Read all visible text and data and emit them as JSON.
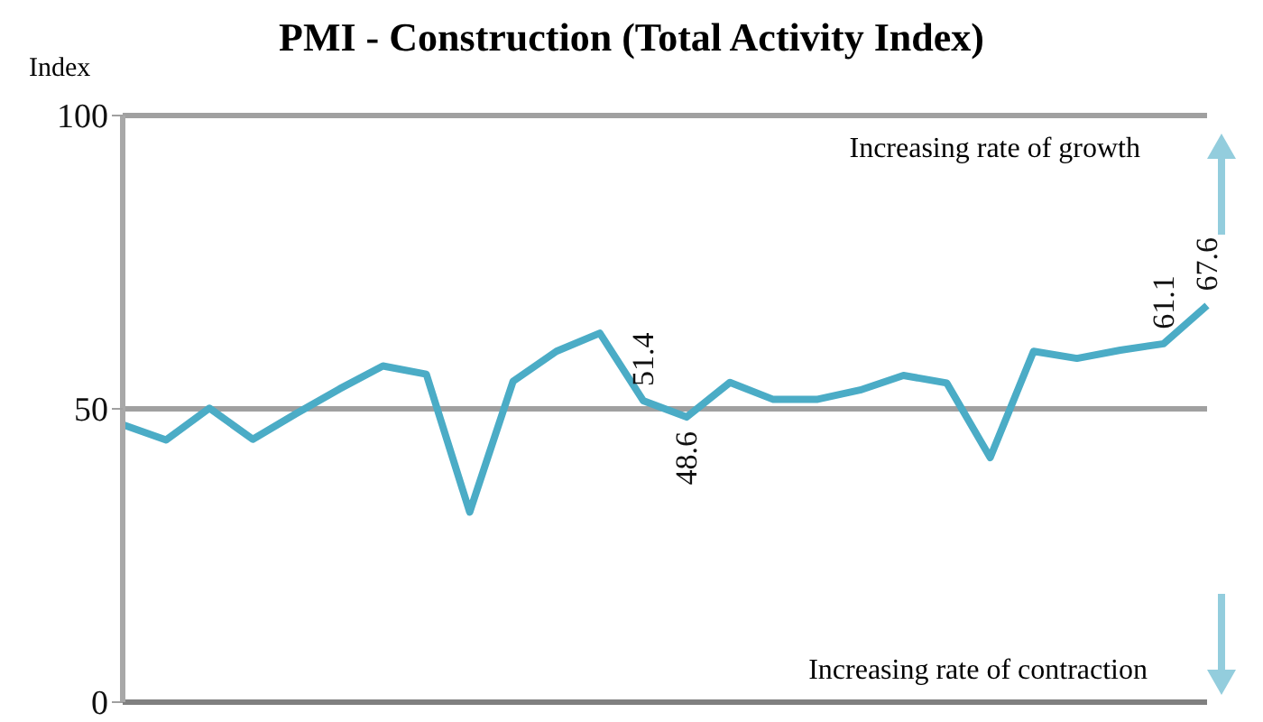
{
  "chart_data": {
    "type": "line",
    "title": "PMI - Construction (Total Activity Index)",
    "ylabel": "Index",
    "categories": [
      null,
      null,
      null,
      null,
      null,
      null,
      null,
      null,
      null,
      null,
      null,
      null,
      null,
      null,
      null,
      null,
      null,
      null,
      null,
      null,
      null,
      null,
      null,
      null,
      null,
      null
    ],
    "series": [
      {
        "color": "#4bacc6",
        "values": [
          47.3,
          44.7,
          50.1,
          44.8,
          49.2,
          53.4,
          57.3,
          55.9,
          32.4,
          54.7,
          59.8,
          62.9,
          51.4,
          48.6,
          54.5,
          51.6,
          51.6,
          53.2,
          55.7,
          54.4,
          41.7,
          59.8,
          58.6,
          60.0,
          61.1,
          67.6
        ],
        "value_labels": [
          null,
          null,
          null,
          null,
          null,
          null,
          null,
          null,
          null,
          null,
          null,
          null,
          "51.4",
          "48.6",
          null,
          null,
          null,
          null,
          null,
          null,
          null,
          null,
          null,
          null,
          "61.1",
          "67.6"
        ]
      }
    ],
    "ylim": [
      0,
      100
    ],
    "yticks": [
      0,
      50,
      100
    ],
    "grid": "y",
    "marker": "none",
    "line_style": "solid",
    "annotations": [
      "Increasing rate of growth",
      "Increasing rate of contraction"
    ]
  }
}
